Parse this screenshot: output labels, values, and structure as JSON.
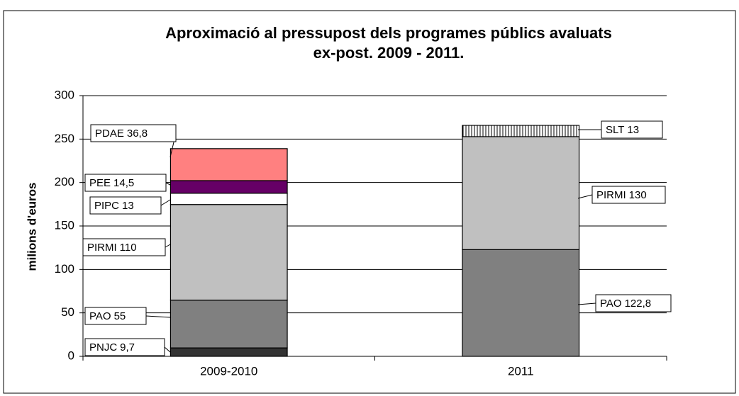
{
  "chart_data": {
    "type": "stacked-bar",
    "title": [
      "Aproximació al pressupost dels programes públics avaluats",
      "ex-post. 2009 - 2011."
    ],
    "y_label": "milions d'euros",
    "categories": [
      "2009-2010",
      "2011"
    ],
    "series": [
      {
        "name": "PNJC",
        "color": "#333333",
        "values": [
          9.7,
          null
        ],
        "value_labels": [
          "9,7",
          null
        ]
      },
      {
        "name": "PAO",
        "color": "#808080",
        "values": [
          55,
          122.8
        ],
        "value_labels": [
          "55",
          "122,8"
        ]
      },
      {
        "name": "PIRMI",
        "color": "#c0c0c0",
        "values": [
          110,
          130
        ],
        "value_labels": [
          "110",
          "130"
        ]
      },
      {
        "name": "PIPC",
        "color": "#ffffff",
        "values": [
          13,
          null
        ],
        "value_labels": [
          "13",
          null
        ]
      },
      {
        "name": "PEE",
        "color": "#660066",
        "values": [
          14.5,
          null
        ],
        "value_labels": [
          "14,5",
          null
        ]
      },
      {
        "name": "PDAE",
        "color": "#ff8080",
        "values": [
          36.8,
          null
        ],
        "value_labels": [
          "36,8",
          null
        ]
      },
      {
        "name": "SLT",
        "color": "#ffffff",
        "pattern": "vertical-lines",
        "values": [
          null,
          13
        ],
        "value_labels": [
          null,
          "13"
        ]
      }
    ],
    "ylim": [
      0,
      300
    ],
    "yticks": [
      0,
      50,
      100,
      150,
      200,
      250,
      300
    ],
    "grid": true
  }
}
